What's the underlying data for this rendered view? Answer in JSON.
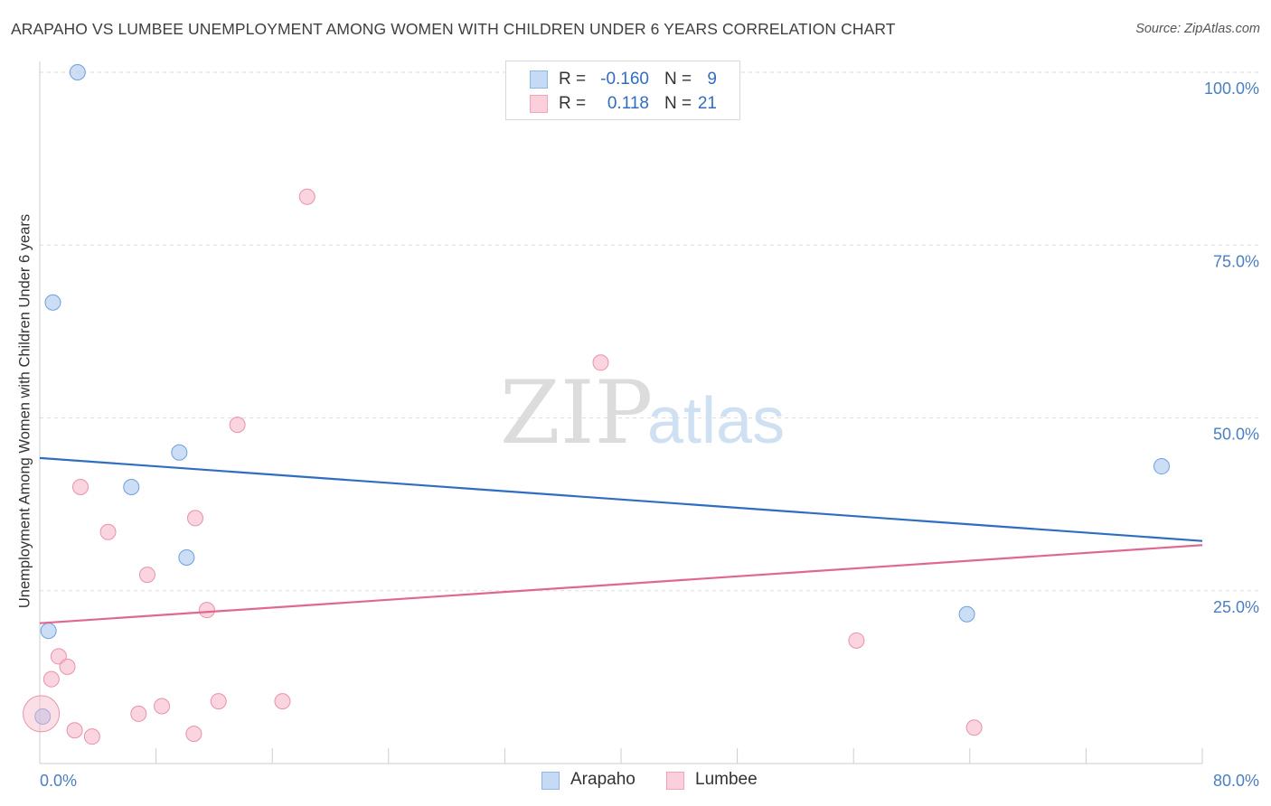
{
  "header": {
    "title": "ARAPAHO VS LUMBEE UNEMPLOYMENT AMONG WOMEN WITH CHILDREN UNDER 6 YEARS CORRELATION CHART",
    "source": "Source: ZipAtlas.com"
  },
  "watermark": {
    "zip": "ZIP",
    "atlas": "atlas"
  },
  "legend": {
    "rows": [
      {
        "series": "Arapaho",
        "r_label": "R =",
        "r_value": "-0.160",
        "n_label": "N =",
        "n_value": "9",
        "color": "#a9c8f0"
      },
      {
        "series": "Lumbee",
        "r_label": "R =",
        "r_value": "0.118",
        "n_label": "N =",
        "n_value": "21",
        "color": "#f6b8ca"
      }
    ]
  },
  "bottom_legend": {
    "arapaho": "Arapaho",
    "lumbee": "Lumbee"
  },
  "chart_data": {
    "type": "scatter",
    "title": "ARAPAHO VS LUMBEE UNEMPLOYMENT AMONG WOMEN WITH CHILDREN UNDER 6 YEARS CORRELATION CHART",
    "xlabel": "",
    "ylabel": "Unemployment Among Women with Children Under 6 years",
    "xlim": [
      0,
      80
    ],
    "ylim": [
      0,
      100
    ],
    "x_tick_labels": [
      "0.0%",
      "80.0%"
    ],
    "y_ticks": [
      25,
      50,
      75,
      100
    ],
    "y_tick_labels": [
      "25.0%",
      "50.0%",
      "75.0%",
      "100.0%"
    ],
    "grid": true,
    "series": [
      {
        "name": "Arapaho",
        "color": "#a9c8f0",
        "stroke": "#6f9fdc",
        "line_color": "#2f6dc4",
        "points": [
          {
            "x": 2.6,
            "y": 100.0
          },
          {
            "x": 0.9,
            "y": 66.7
          },
          {
            "x": 9.6,
            "y": 45.0
          },
          {
            "x": 6.3,
            "y": 40.0
          },
          {
            "x": 10.1,
            "y": 29.8
          },
          {
            "x": 0.6,
            "y": 19.2
          },
          {
            "x": 0.2,
            "y": 6.8
          },
          {
            "x": 63.8,
            "y": 21.6
          },
          {
            "x": 77.2,
            "y": 43.0
          }
        ],
        "trend": {
          "x": [
            0,
            80
          ],
          "y": [
            44.2,
            32.2
          ]
        }
      },
      {
        "name": "Lumbee",
        "color": "#f6b8ca",
        "stroke": "#e892ac",
        "line_color": "#e0688f",
        "points": [
          {
            "x": 18.4,
            "y": 82.0
          },
          {
            "x": 38.6,
            "y": 58.0
          },
          {
            "x": 13.6,
            "y": 49.0
          },
          {
            "x": 2.8,
            "y": 40.0
          },
          {
            "x": 10.7,
            "y": 35.5
          },
          {
            "x": 4.7,
            "y": 33.5
          },
          {
            "x": 7.4,
            "y": 27.3
          },
          {
            "x": 11.5,
            "y": 22.2
          },
          {
            "x": 1.3,
            "y": 15.5
          },
          {
            "x": 1.9,
            "y": 14.0
          },
          {
            "x": 0.8,
            "y": 12.2
          },
          {
            "x": 12.3,
            "y": 9.0
          },
          {
            "x": 16.7,
            "y": 9.0
          },
          {
            "x": 8.4,
            "y": 8.3
          },
          {
            "x": 6.8,
            "y": 7.2
          },
          {
            "x": 0.1,
            "y": 7.2
          },
          {
            "x": 2.4,
            "y": 4.8
          },
          {
            "x": 3.6,
            "y": 3.9
          },
          {
            "x": 10.6,
            "y": 4.3
          },
          {
            "x": 56.2,
            "y": 17.8
          },
          {
            "x": 64.3,
            "y": 5.2
          }
        ],
        "trend": {
          "x": [
            0,
            80
          ],
          "y": [
            20.3,
            31.6
          ]
        }
      }
    ]
  }
}
